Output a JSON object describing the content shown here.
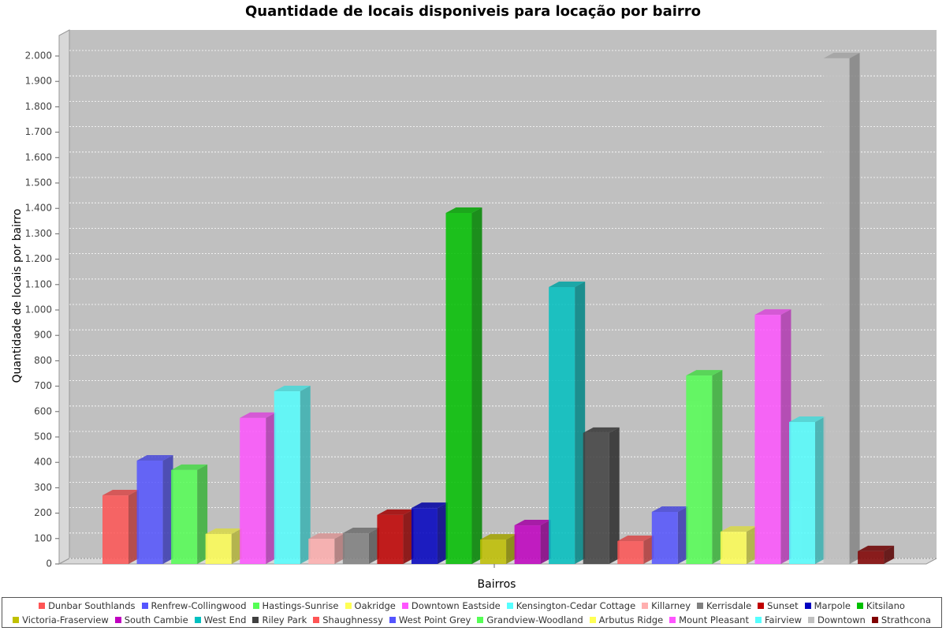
{
  "chart_data": {
    "type": "bar3d",
    "title": "Quantidade de locais disponiveis para locação por bairro",
    "xlabel": "Bairros",
    "ylabel": "Quantidade de locais por bairro",
    "categories": [
      null
    ],
    "ylim": [
      0,
      2000
    ],
    "yticks": [
      0,
      100,
      200,
      300,
      400,
      500,
      600,
      700,
      800,
      900,
      {
        "value": 1000,
        "label": "1.000"
      },
      {
        "value": 1100,
        "label": "1.100"
      },
      {
        "value": 1200,
        "label": "1.200"
      },
      {
        "value": 1300,
        "label": "1.300"
      },
      {
        "value": 1400,
        "label": "1.400"
      },
      {
        "value": 1500,
        "label": "1.500"
      },
      {
        "value": 1600,
        "label": "1.600"
      },
      {
        "value": 1700,
        "label": "1.700"
      },
      {
        "value": 1800,
        "label": "1.800"
      },
      {
        "value": 1900,
        "label": "1.900"
      },
      {
        "value": 2000,
        "label": "2.000"
      }
    ],
    "grid": true,
    "legend": "bottom",
    "series": [
      {
        "name": "Dunbar Southlands",
        "color": "#ff5555",
        "values": [
          270
        ]
      },
      {
        "name": "Renfrew-Collingwood",
        "color": "#5555ff",
        "values": [
          407
        ]
      },
      {
        "name": "Hastings-Sunrise",
        "color": "#55ff55",
        "values": [
          370
        ]
      },
      {
        "name": "Oakridge",
        "color": "#ffff55",
        "values": [
          118
        ]
      },
      {
        "name": "Downtown Eastside",
        "color": "#ff55ff",
        "values": [
          575
        ]
      },
      {
        "name": "Kensington-Cedar Cottage",
        "color": "#55ffff",
        "values": [
          680
        ]
      },
      {
        "name": "Killarney",
        "color": "#ffafaf",
        "values": [
          99
        ]
      },
      {
        "name": "Kerrisdale",
        "color": "#808080",
        "values": [
          121
        ]
      },
      {
        "name": "Sunset",
        "color": "#c00000",
        "values": [
          193
        ]
      },
      {
        "name": "Marpole",
        "color": "#0000c0",
        "values": [
          220
        ]
      },
      {
        "name": "Kitsilano",
        "color": "#00c000",
        "values": [
          1382
        ]
      },
      {
        "name": "Victoria-Fraserview",
        "color": "#c0c000",
        "values": [
          96
        ]
      },
      {
        "name": "South Cambie",
        "color": "#c000c0",
        "values": [
          152
        ]
      },
      {
        "name": "West End",
        "color": "#00c0c0",
        "values": [
          1090
        ]
      },
      {
        "name": "Riley Park",
        "color": "#404040",
        "values": [
          516
        ]
      },
      {
        "name": "Shaughnessy",
        "color": "#ff5555",
        "values": [
          90
        ]
      },
      {
        "name": "West Point Grey",
        "color": "#5555ff",
        "values": [
          205
        ]
      },
      {
        "name": "Grandview-Woodland",
        "color": "#55ff55",
        "values": [
          742
        ]
      },
      {
        "name": "Arbutus Ridge",
        "color": "#ffff55",
        "values": [
          127
        ]
      },
      {
        "name": "Mount Pleasant",
        "color": "#ff55ff",
        "values": [
          981
        ]
      },
      {
        "name": "Fairview",
        "color": "#55ffff",
        "values": [
          559
        ]
      },
      {
        "name": "Downtown",
        "color": "#c0c0c0",
        "values": [
          1991
        ]
      },
      {
        "name": "Strathcona",
        "color": "#800000",
        "values": [
          50
        ]
      }
    ]
  }
}
